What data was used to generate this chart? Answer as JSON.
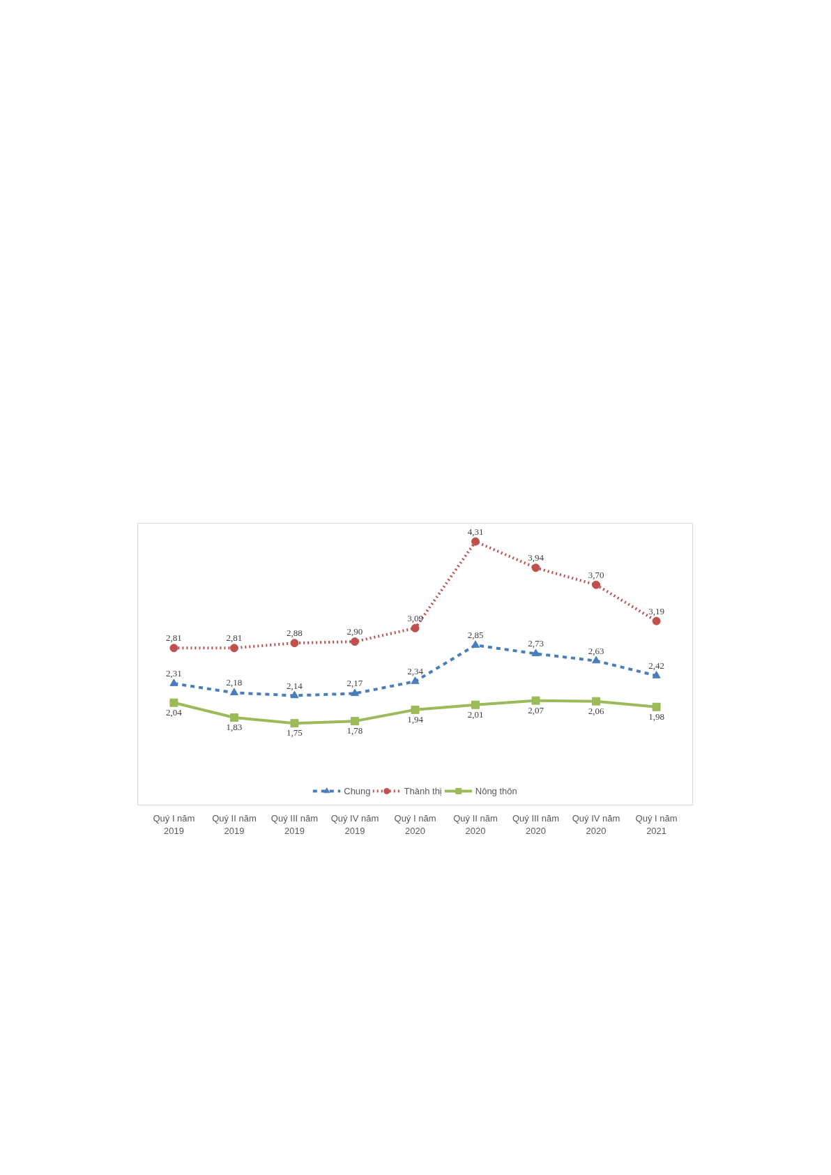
{
  "chart_data": {
    "type": "line",
    "categories": [
      "Quý I năm 2019",
      "Quý II năm 2019",
      "Quý III năm 2019",
      "Quý IV năm 2019",
      "Quý I năm 2020",
      "Quý II năm 2020",
      "Quý III năm 2020",
      "Quý IV năm 2020",
      "Quý I năm 2021"
    ],
    "series": [
      {
        "name": "Chung",
        "color": "#4a7ebb",
        "marker": "triangle",
        "line_style": "dashed",
        "values": [
          2.31,
          2.18,
          2.14,
          2.17,
          2.34,
          2.85,
          2.73,
          2.63,
          2.42
        ],
        "value_labels": [
          "2,31",
          "2,18",
          "2,14",
          "2,17",
          "2,34",
          "2,85",
          "2,73",
          "2,63",
          "2,42"
        ]
      },
      {
        "name": "Thành thị",
        "color": "#c0504d",
        "marker": "circle",
        "line_style": "dotted",
        "values": [
          2.81,
          2.81,
          2.88,
          2.9,
          3.09,
          4.31,
          3.94,
          3.7,
          3.19
        ],
        "value_labels": [
          "2,81",
          "2,81",
          "2,88",
          "2,90",
          "3,09",
          "4,31",
          "3,94",
          "3,70",
          "3,19"
        ]
      },
      {
        "name": "Nông thôn",
        "color": "#9bbb59",
        "marker": "square",
        "line_style": "solid",
        "values": [
          2.04,
          1.83,
          1.75,
          1.78,
          1.94,
          2.01,
          2.07,
          2.06,
          1.98
        ],
        "value_labels": [
          "2,04",
          "1,83",
          "1,75",
          "1,78",
          "1,94",
          "2,01",
          "2,07",
          "2,06",
          "1,98"
        ]
      }
    ],
    "legend": "bottom",
    "grid": false
  }
}
